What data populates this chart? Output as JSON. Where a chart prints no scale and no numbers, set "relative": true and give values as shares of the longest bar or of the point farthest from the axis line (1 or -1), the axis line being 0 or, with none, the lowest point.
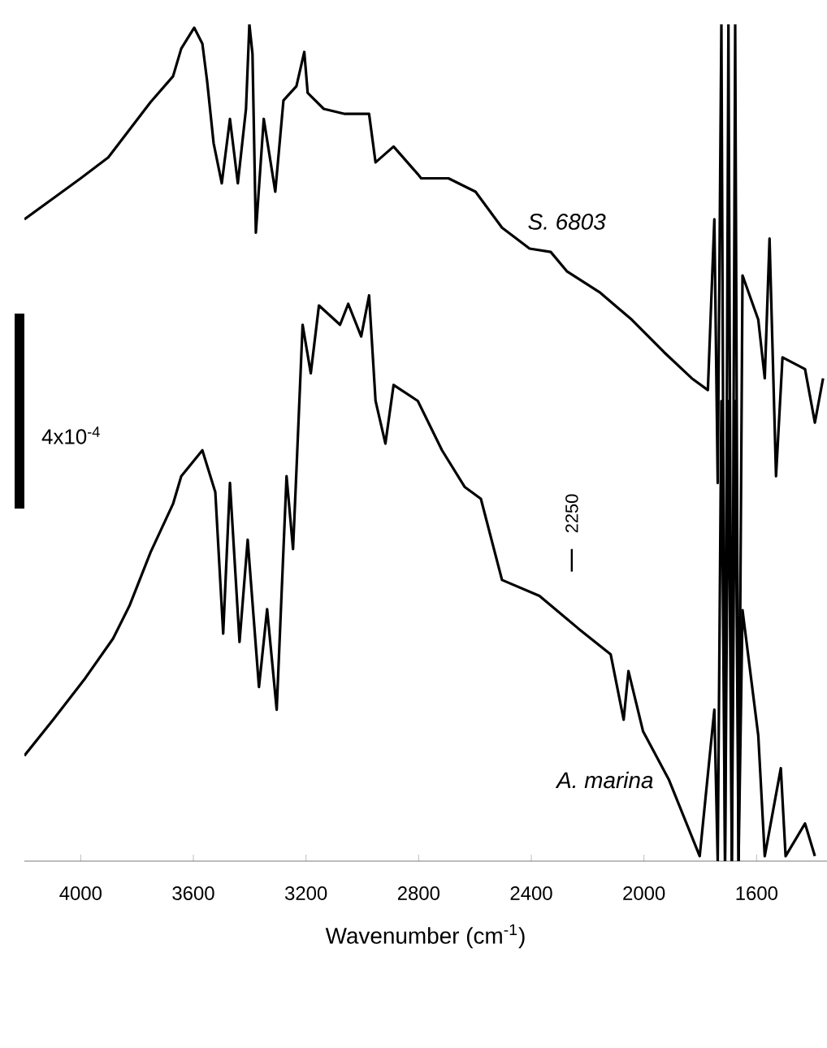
{
  "chart_data": {
    "type": "line",
    "xlabel": "Wavenumber (cm$^{-1}$)",
    "relative": true,
    "xlim": [
      4200,
      1350
    ],
    "xticks": [
      4000,
      3600,
      3200,
      2800,
      2400,
      2000,
      1600
    ],
    "annotations": [
      "4x10$^{-4}$",
      "2250"
    ],
    "series": [
      {
        "name": "*S. 6803*",
        "color": "#000000",
        "x": [
          4200,
          4098,
          4000,
          3902,
          3827,
          3752,
          3672,
          3643,
          3597,
          3568,
          3551,
          3528,
          3499,
          3470,
          3442,
          3413,
          3401,
          3390,
          3378,
          3350,
          3309,
          3280,
          3234,
          3206,
          3194,
          3137,
          3062,
          2976,
          2953,
          2889,
          2803,
          2791,
          2694,
          2598,
          2504,
          2406,
          2331,
          2274,
          2158,
          2043,
          1928,
          1830,
          1773,
          1750,
          1738,
          1725,
          1712,
          1700,
          1688,
          1676,
          1664,
          1650,
          1594,
          1571,
          1554,
          1531,
          1508,
          1428,
          1393,
          1364
        ],
        "values": [
          0.767,
          0.792,
          0.816,
          0.841,
          0.874,
          0.907,
          0.938,
          0.971,
          0.996,
          0.977,
          0.932,
          0.858,
          0.81,
          0.887,
          0.81,
          0.899,
          1.0,
          0.965,
          0.751,
          0.887,
          0.8,
          0.909,
          0.926,
          0.967,
          0.918,
          0.899,
          0.893,
          0.893,
          0.835,
          0.854,
          0.821,
          0.816,
          0.816,
          0.8,
          0.757,
          0.732,
          0.728,
          0.705,
          0.68,
          0.647,
          0.608,
          0.577,
          0.563,
          0.767,
          0.452,
          1.0,
          0.0,
          1.0,
          0.0,
          1.0,
          0.0,
          0.7,
          0.647,
          0.577,
          0.744,
          0.46,
          0.602,
          0.588,
          0.524,
          0.577
        ]
      },
      {
        "name": "*A. marina*",
        "color": "#000000",
        "x": [
          4200,
          4098,
          3983,
          3885,
          3827,
          3752,
          3672,
          3643,
          3568,
          3522,
          3494,
          3470,
          3436,
          3407,
          3367,
          3338,
          3304,
          3269,
          3246,
          3234,
          3212,
          3183,
          3154,
          3079,
          3050,
          3004,
          2976,
          2953,
          2918,
          2889,
          2803,
          2717,
          2636,
          2579,
          2504,
          2371,
          2233,
          2118,
          2072,
          2055,
          2003,
          1911,
          1802,
          1750,
          1738,
          1725,
          1712,
          1700,
          1688,
          1676,
          1664,
          1650,
          1594,
          1571,
          1514,
          1497,
          1428,
          1393
        ],
        "values": [
          0.126,
          0.169,
          0.219,
          0.266,
          0.305,
          0.369,
          0.427,
          0.46,
          0.491,
          0.441,
          0.272,
          0.452,
          0.262,
          0.384,
          0.208,
          0.301,
          0.181,
          0.46,
          0.373,
          0.466,
          0.641,
          0.583,
          0.664,
          0.641,
          0.666,
          0.627,
          0.676,
          0.55,
          0.499,
          0.569,
          0.55,
          0.491,
          0.447,
          0.433,
          0.336,
          0.317,
          0.278,
          0.247,
          0.169,
          0.227,
          0.155,
          0.097,
          0.006,
          0.181,
          0.0,
          0.55,
          0.0,
          0.55,
          0.0,
          0.55,
          0.0,
          0.3,
          0.15,
          0.006,
          0.111,
          0.006,
          0.045,
          0.006
        ]
      }
    ]
  }
}
